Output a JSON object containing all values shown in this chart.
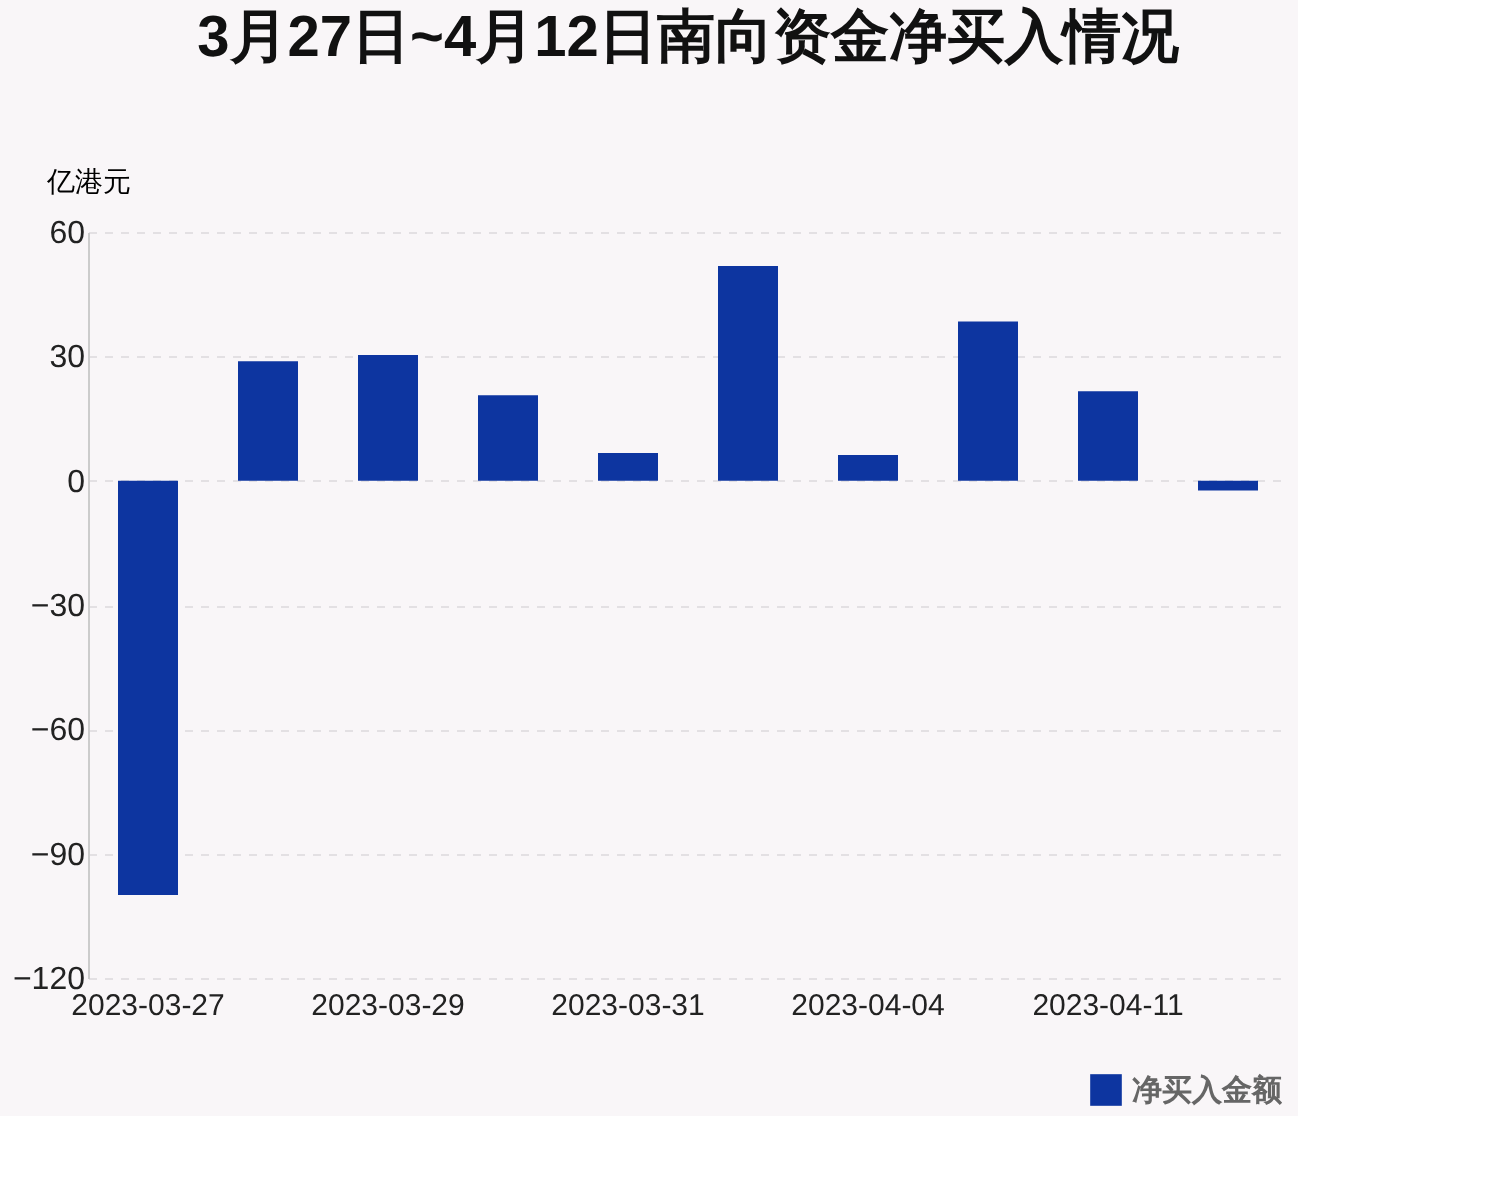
{
  "chart_data": {
    "type": "bar",
    "title": "3月27日~4月12日南向资金净买入情况",
    "ylabel": "亿港元",
    "categories": [
      "2023-03-27",
      null,
      "2023-03-29",
      null,
      "2023-03-31",
      null,
      "2023-04-04",
      null,
      "2023-04-11",
      null
    ],
    "series": [
      {
        "name": "净买入金额",
        "color": "#0d35a0",
        "values": [
          -100,
          28.8,
          30.3,
          20.6,
          6.7,
          51.8,
          6.2,
          38.4,
          21.6,
          -2.4
        ]
      }
    ],
    "ylim": [
      -120,
      60
    ],
    "yticks": [
      -120,
      -90,
      -60,
      -30,
      0,
      30,
      60
    ],
    "grid": "y",
    "legend": "bottom right"
  }
}
